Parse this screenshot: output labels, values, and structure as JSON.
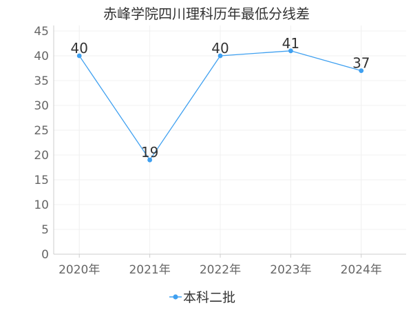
{
  "chart_data": {
    "type": "line",
    "title": "赤峰学院四川理科历年最低分线差",
    "categories": [
      "2020年",
      "2021年",
      "2022年",
      "2023年",
      "2024年"
    ],
    "series": [
      {
        "name": "本科二批",
        "values": [
          40,
          19,
          40,
          41,
          37
        ],
        "color": "#3fa0f0"
      }
    ],
    "xlabel": "",
    "ylabel": "",
    "ylim": [
      0,
      45
    ],
    "yticks": [
      0,
      5,
      10,
      15,
      20,
      25,
      30,
      35,
      40,
      45
    ],
    "grid": true,
    "legend": "bottom-center",
    "axis_color": "#cccccc",
    "grid_color": "#f0f0f0"
  }
}
